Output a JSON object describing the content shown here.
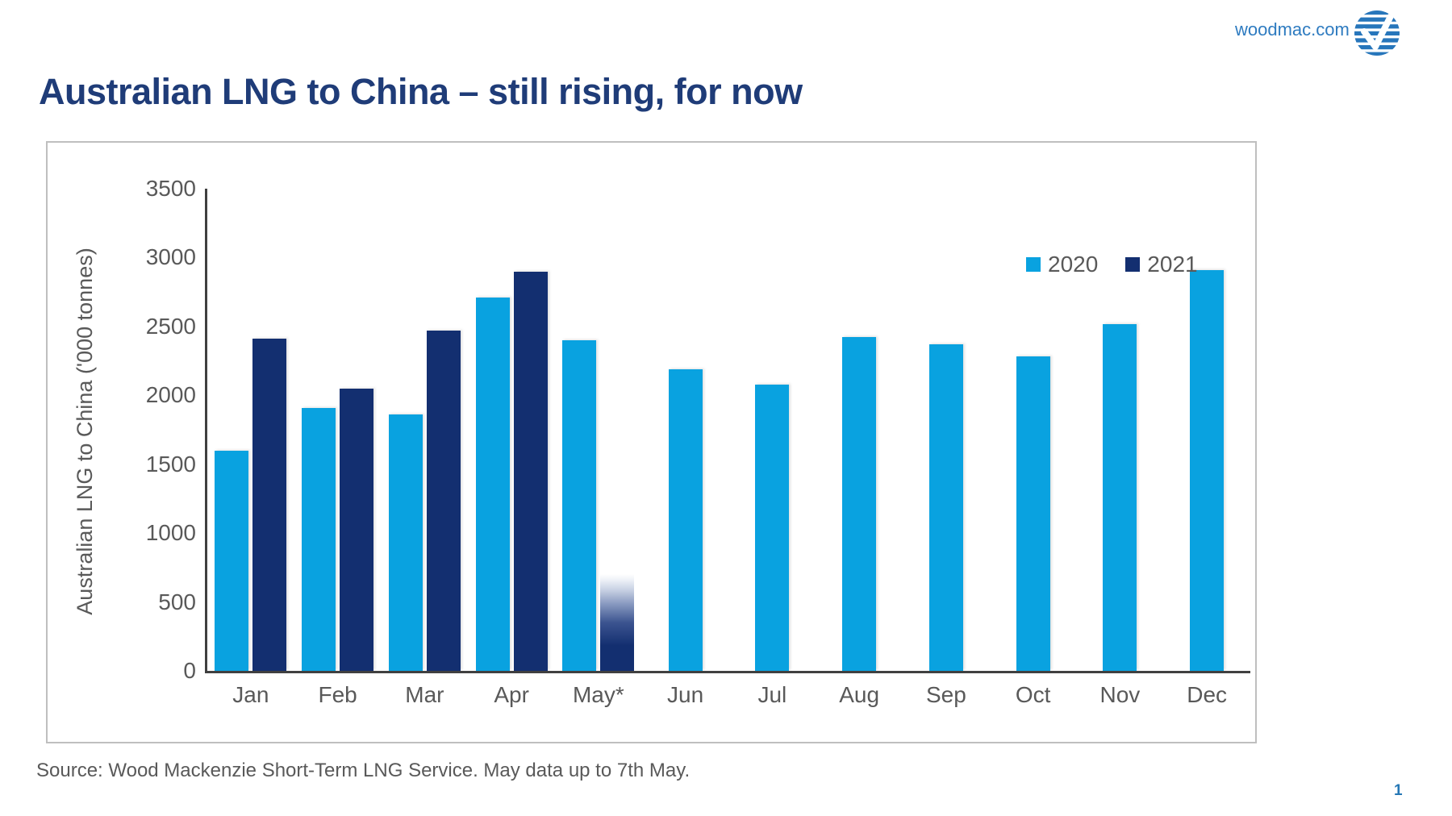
{
  "header": {
    "brand_url": "woodmac.com",
    "title": "Australian LNG to China – still rising, for now"
  },
  "footer": {
    "source_note": "Source: Wood Mackenzie Short-Term LNG Service. May data up to 7th May.",
    "page_number": "1"
  },
  "colors": {
    "title_navy": "#1F3C78",
    "axis_line": "#404040",
    "tick_text": "#595959",
    "chart_border": "#BFBFBF",
    "brand_blue": "#2E7BC0",
    "page_number_blue": "#2577B5",
    "series_2020": "#09A2E0",
    "series_2021": "#132F70"
  },
  "chart_data": {
    "type": "bar",
    "title": "",
    "xlabel": "",
    "ylabel": "Australian LNG to China ('000 tonnes)",
    "ylim": [
      0,
      3500
    ],
    "yticks": [
      0,
      500,
      1000,
      1500,
      2000,
      2500,
      3000,
      3500
    ],
    "grid": false,
    "legend_position": "top-right-inside",
    "categories": [
      "Jan",
      "Feb",
      "Mar",
      "Apr",
      "May*",
      "Jun",
      "Jul",
      "Aug",
      "Sep",
      "Oct",
      "Nov",
      "Dec"
    ],
    "series": [
      {
        "name": "2020",
        "color": "#09A2E0",
        "values": [
          1600,
          1910,
          1860,
          2710,
          2400,
          2190,
          2080,
          2425,
          2370,
          2280,
          2515,
          2910
        ]
      },
      {
        "name": "2021",
        "color": "#132F70",
        "values": [
          2410,
          2050,
          2470,
          2900,
          705,
          null,
          null,
          null,
          null,
          null,
          null,
          null
        ],
        "partial": {
          "category": "May*",
          "value": 705,
          "style": "fade-to-white-top",
          "note": "May data up to 7th May"
        }
      }
    ]
  }
}
